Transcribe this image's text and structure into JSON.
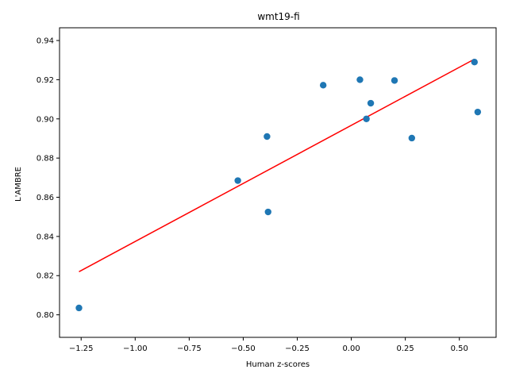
{
  "chart_data": {
    "type": "scatter",
    "title": "wmt19-fi",
    "xlabel": "Human z-scores",
    "ylabel": "L'AMBRE",
    "xlim": [
      -1.35,
      0.67
    ],
    "ylim": [
      0.7885,
      0.9465
    ],
    "grid": false,
    "x_ticks": [
      -1.25,
      -1.0,
      -0.75,
      -0.5,
      -0.25,
      0.0,
      0.25,
      0.5
    ],
    "x_tick_labels": [
      "−1.25",
      "−1.00",
      "−0.75",
      "−0.50",
      "−0.25",
      "0.00",
      "0.25",
      "0.50"
    ],
    "y_ticks": [
      0.8,
      0.82,
      0.84,
      0.86,
      0.88,
      0.9,
      0.92,
      0.94
    ],
    "y_tick_labels": [
      "0.80",
      "0.82",
      "0.84",
      "0.86",
      "0.88",
      "0.90",
      "0.92",
      "0.94"
    ],
    "points": [
      {
        "x": -1.26,
        "y": 0.8035
      },
      {
        "x": -0.525,
        "y": 0.8685
      },
      {
        "x": -0.39,
        "y": 0.891
      },
      {
        "x": -0.385,
        "y": 0.8525
      },
      {
        "x": -0.13,
        "y": 0.9172
      },
      {
        "x": 0.04,
        "y": 0.92
      },
      {
        "x": 0.07,
        "y": 0.9
      },
      {
        "x": 0.09,
        "y": 0.908
      },
      {
        "x": 0.2,
        "y": 0.9196
      },
      {
        "x": 0.28,
        "y": 0.8902
      },
      {
        "x": 0.57,
        "y": 0.929
      },
      {
        "x": 0.585,
        "y": 0.9035
      }
    ],
    "fit_line": {
      "x": [
        -1.26,
        0.57
      ],
      "y": [
        0.822,
        0.9305
      ]
    },
    "colors": {
      "points": "#1f77b4",
      "fit_line": "#ff0000"
    }
  }
}
